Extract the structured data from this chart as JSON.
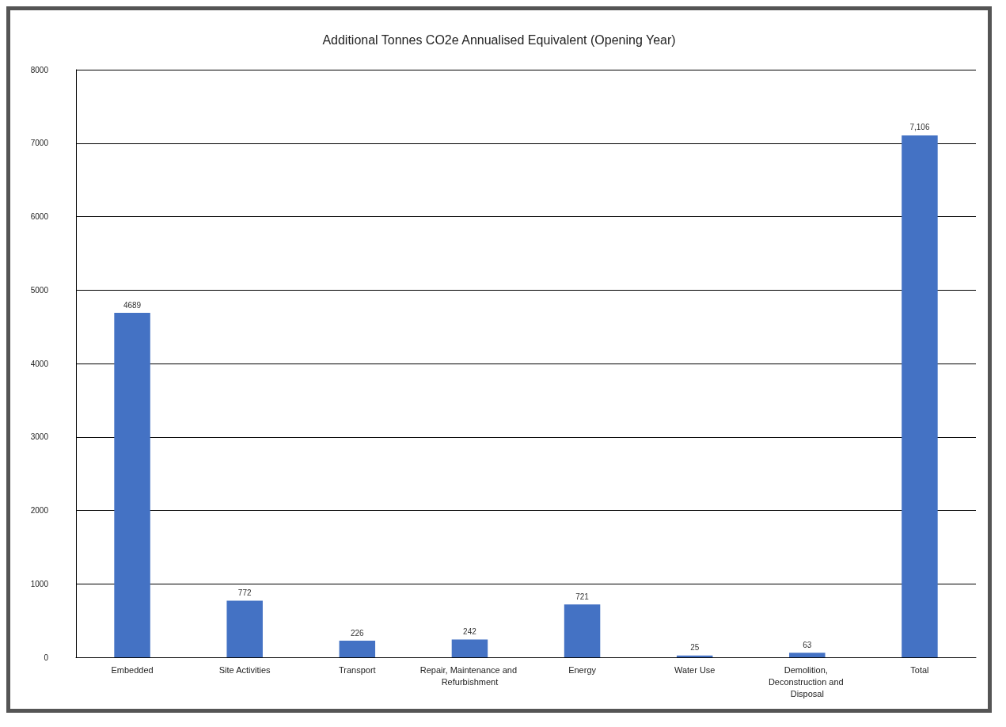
{
  "chart_data": {
    "type": "bar",
    "title": "Additional Tonnes CO2e Annualised Equivalent (Opening Year)",
    "categories": [
      "Embedded",
      "Site Activities",
      "Transport",
      "Repair, Maintenance and Refurbishment",
      "Energy",
      "Water Use",
      "Demolition, Deconstruction and Disposal",
      "Total"
    ],
    "values": [
      4689,
      772,
      226,
      242,
      721,
      25,
      63,
      7106
    ],
    "value_labels": [
      "4689",
      "772",
      "226",
      "242",
      "721",
      "25",
      "63",
      "7,106"
    ],
    "color": "#4472c4",
    "ylim": [
      0,
      8000
    ],
    "yticks": [
      0,
      1000,
      2000,
      3000,
      4000,
      5000,
      6000,
      7000,
      8000
    ],
    "grid": "y"
  }
}
